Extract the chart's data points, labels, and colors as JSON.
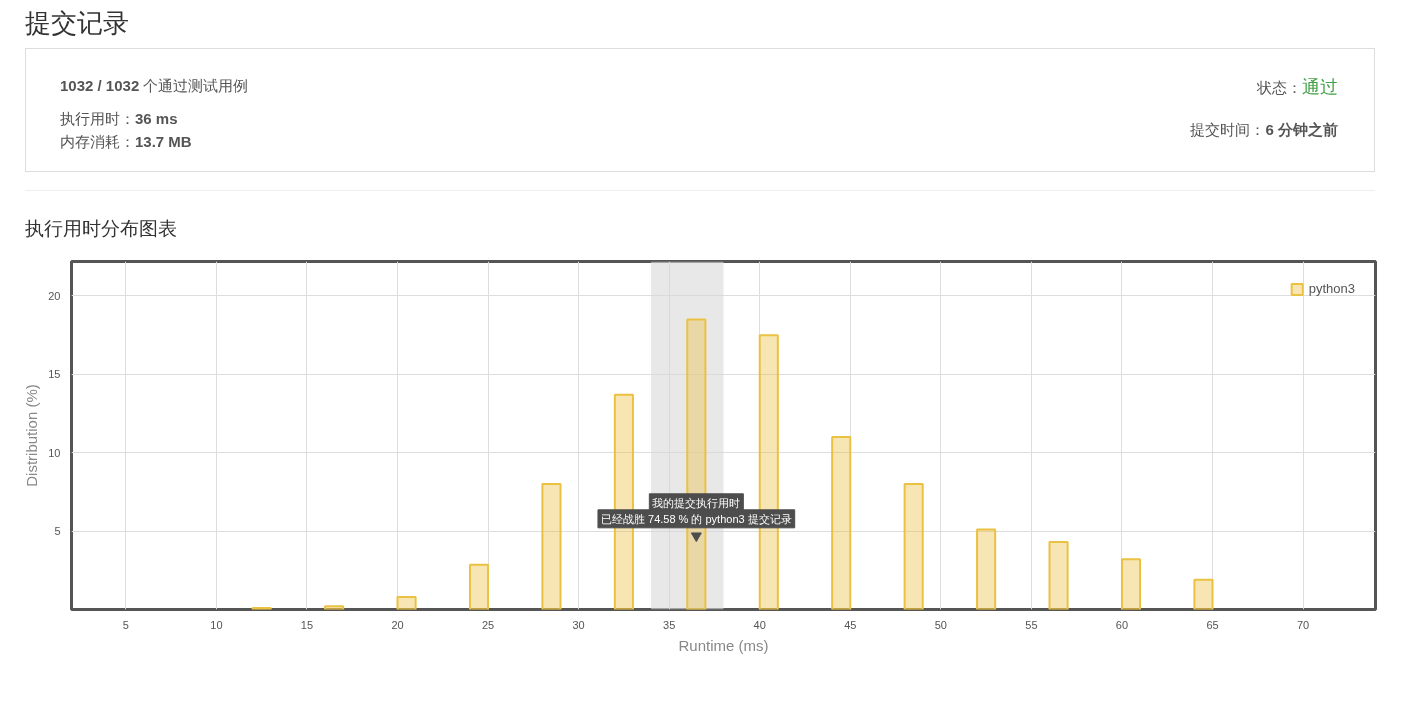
{
  "chart_data": [
    {
      "type": "other",
      "title": "提交记录",
      "annotations": [
        "1032 / 1032 个通过测试用例",
        "执行用时：36 ms",
        "内存消耗：13.7 MB",
        "状态：通过",
        "提交时间：6 分钟之前"
      ]
    },
    {
      "type": "bar",
      "title": "执行用时分布图表",
      "xlabel": "Runtime (ms)",
      "ylabel": "Distribution (%)",
      "x": [
        12.5,
        16.5,
        20.5,
        24.5,
        28.5,
        32.5,
        36.5,
        40.5,
        44.5,
        48.5,
        52.5,
        56.5,
        60.5,
        64.5
      ],
      "series": [
        {
          "name": "python3",
          "color": "#ebc142",
          "values": [
            0.1,
            0.2,
            0.8,
            2.85,
            8.0,
            13.7,
            18.5,
            17.5,
            11.0,
            8.0,
            5.1,
            4.3,
            3.2,
            1.9
          ]
        }
      ],
      "xlim": [
        2,
        74
      ],
      "xticks": [
        5,
        10,
        15,
        20,
        25,
        30,
        35,
        40,
        45,
        50,
        55,
        60,
        65,
        70
      ],
      "ylim": [
        0,
        22.2
      ],
      "yticks": [
        5,
        10,
        15,
        20
      ],
      "bands": [
        {
          "axis": "x",
          "from": 34,
          "to": 38,
          "color": "#d9d9d9"
        }
      ],
      "annotations": [
        {
          "text": "我的提交执行用时",
          "x": 36.5,
          "y": 4.7
        },
        "已经战胜 74.58 % 的 python3 提交记录"
      ],
      "grid": true,
      "legend": "top right"
    }
  ]
}
